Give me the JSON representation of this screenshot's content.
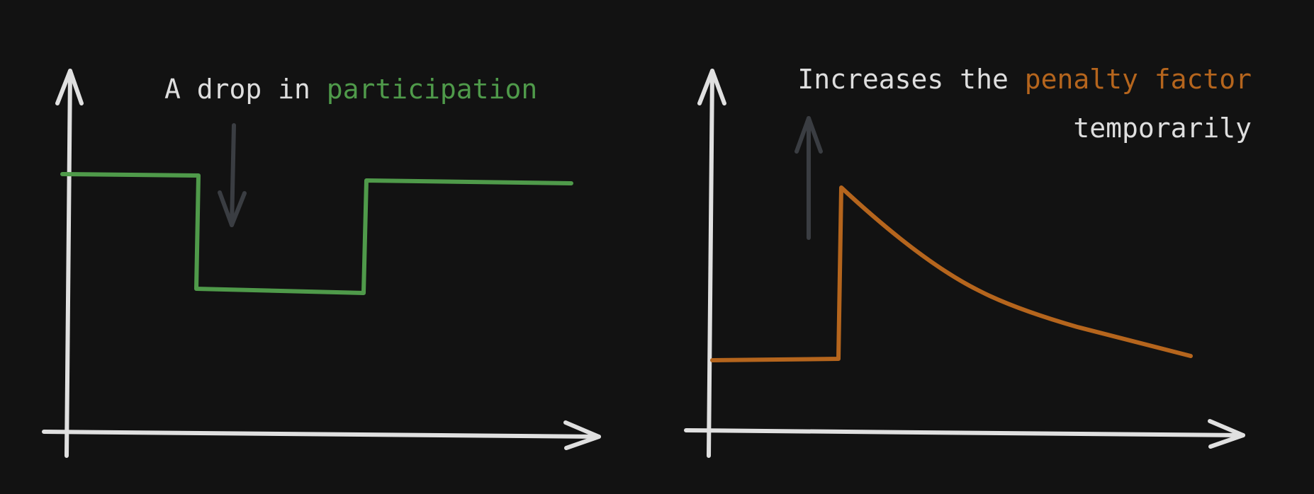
{
  "colors": {
    "background": "#121212",
    "axis": "#e0e0e0",
    "text": "#dedede",
    "hint_arrow": "#3a3d42",
    "participation": "#4f9a4a",
    "penalty": "#b5651d"
  },
  "left_panel": {
    "caption_prefix": "A drop in ",
    "caption_highlight": "participation",
    "hint_arrow": "down-arrow-icon"
  },
  "right_panel": {
    "caption_prefix": "Increases the ",
    "caption_highlight": "penalty factor",
    "caption_line2": "temporarily",
    "hint_arrow": "up-arrow-icon"
  },
  "chart_data": [
    {
      "type": "line",
      "series": [
        {
          "shape": "step",
          "values_by_segment": [
            "high",
            "low",
            "high"
          ]
        }
      ],
      "grid": false
    },
    {
      "type": "line",
      "series": [
        {
          "shape": "flat-then-spike-then-decay",
          "values_by_segment": [
            "low",
            "peak",
            "decaying"
          ]
        }
      ],
      "grid": false
    }
  ]
}
